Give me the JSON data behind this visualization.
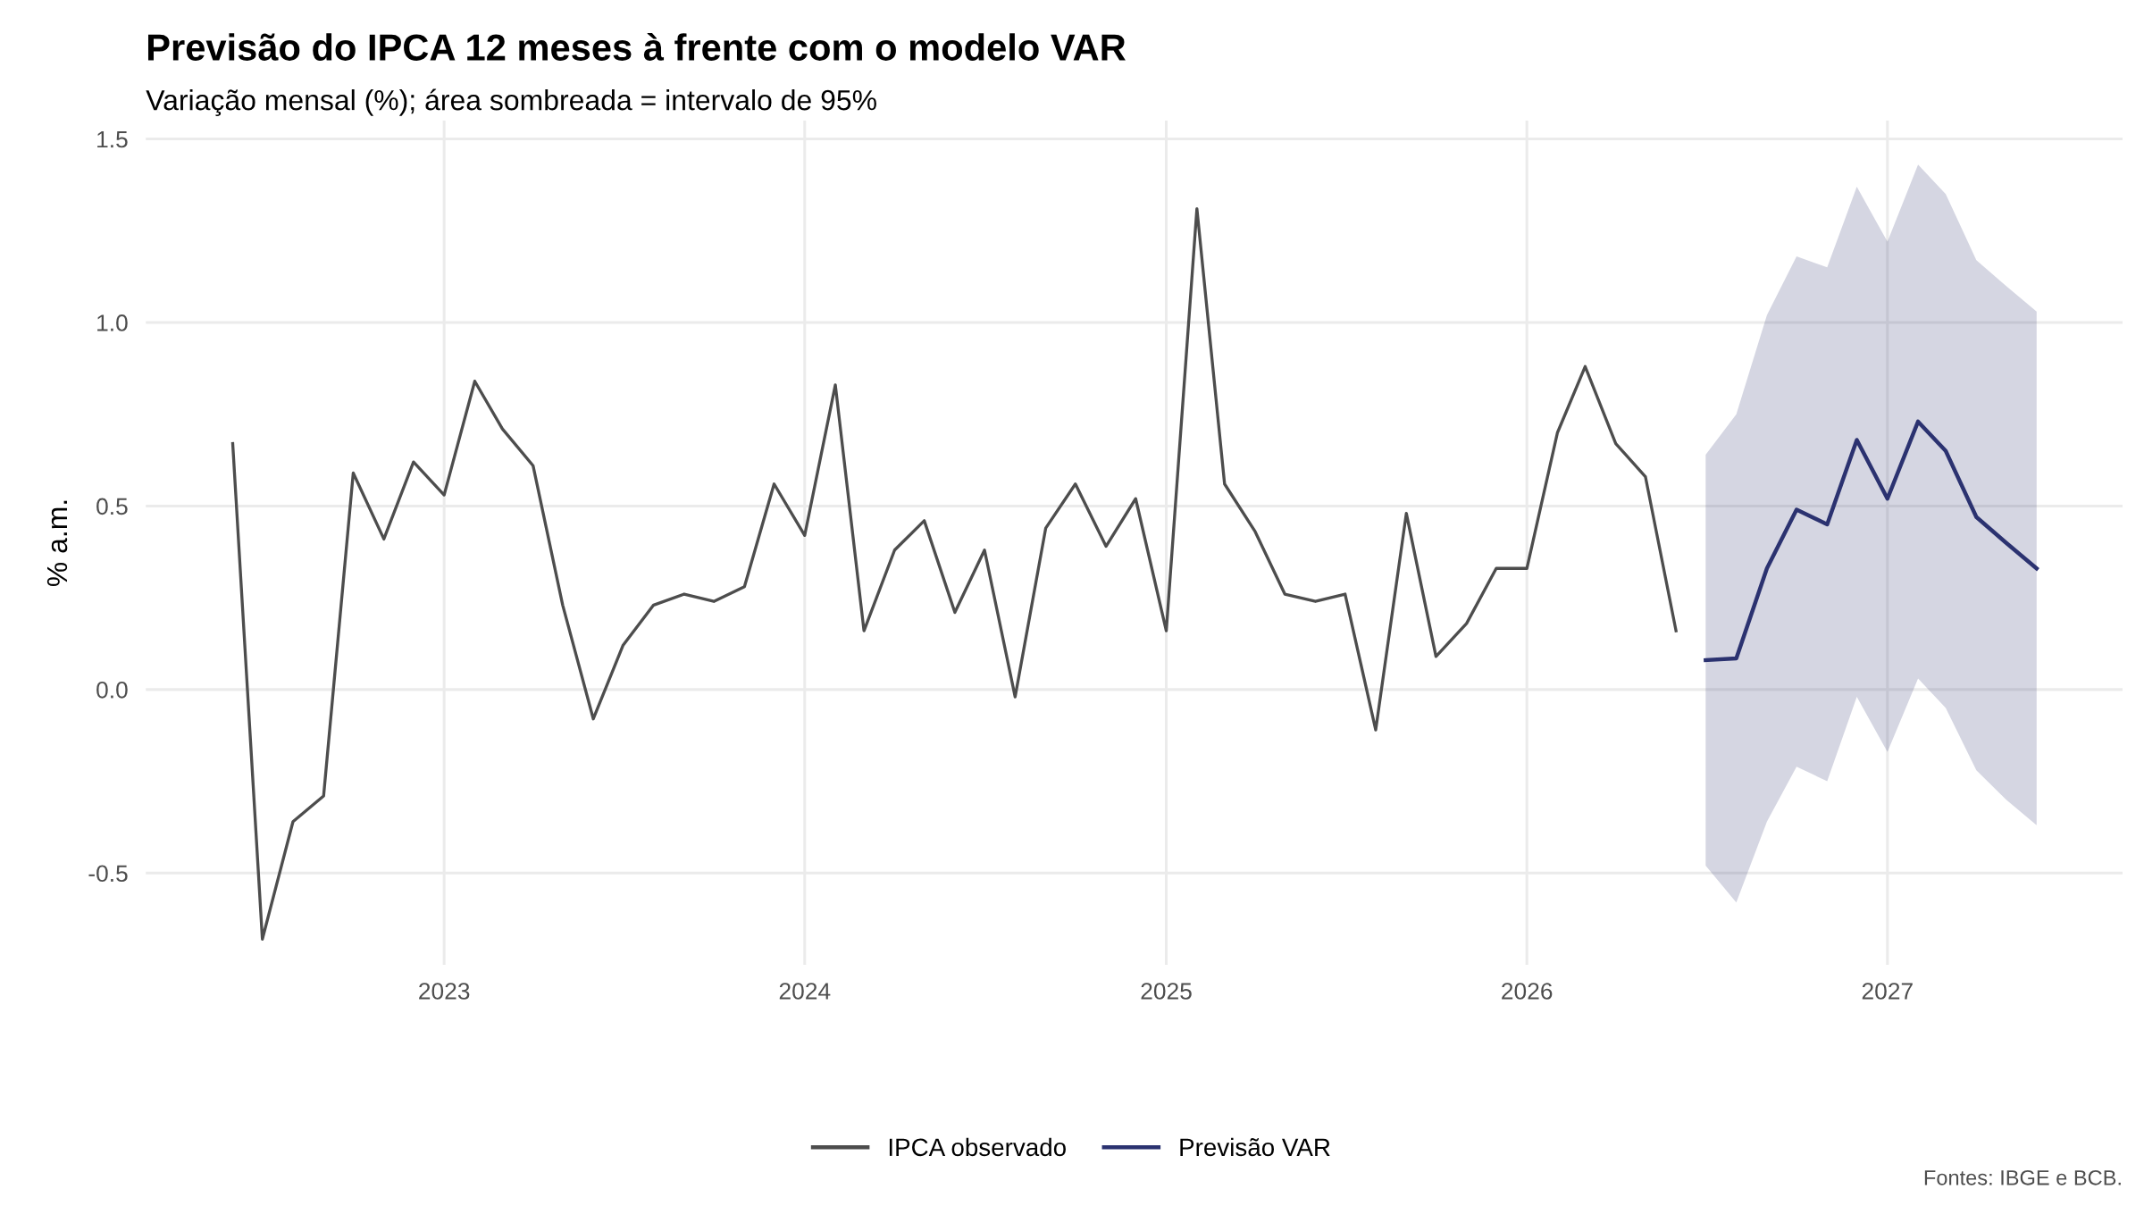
{
  "chart_data": {
    "type": "line",
    "title": "Previsão do IPCA 12 meses à frente com o modelo VAR",
    "subtitle": "Variação mensal (%); área sombreada = intervalo de 95%",
    "ylabel": "% a.m.",
    "series": [
      {
        "name": "IPCA observado",
        "color": "#4d4d4d",
        "x": [
          "2022-06",
          "2022-07",
          "2022-08",
          "2022-09",
          "2022-10",
          "2022-11",
          "2022-12",
          "2023-01",
          "2023-02",
          "2023-03",
          "2023-04",
          "2023-05",
          "2023-06",
          "2023-07",
          "2023-08",
          "2023-09",
          "2023-10",
          "2023-11",
          "2023-12",
          "2024-01",
          "2024-02",
          "2024-03",
          "2024-04",
          "2024-05",
          "2024-06",
          "2024-07",
          "2024-08",
          "2024-09",
          "2024-10",
          "2024-11",
          "2024-12",
          "2025-01",
          "2025-02",
          "2025-03",
          "2025-04",
          "2025-05",
          "2025-06",
          "2025-07",
          "2025-08",
          "2025-09",
          "2025-10",
          "2025-11",
          "2025-12",
          "2026-01",
          "2026-02",
          "2026-03",
          "2026-04",
          "2026-05",
          "2026-06"
        ],
        "values": [
          0.67,
          -0.68,
          -0.36,
          -0.29,
          0.59,
          0.41,
          0.62,
          0.53,
          0.84,
          0.71,
          0.61,
          0.23,
          -0.08,
          0.12,
          0.23,
          0.26,
          0.24,
          0.28,
          0.56,
          0.42,
          0.83,
          0.16,
          0.38,
          0.46,
          0.21,
          0.38,
          -0.02,
          0.44,
          0.56,
          0.39,
          0.52,
          0.16,
          1.31,
          0.56,
          0.43,
          0.26,
          0.24,
          0.26,
          -0.11,
          0.48,
          0.09,
          0.18,
          0.33,
          0.33,
          0.7,
          0.88,
          0.67,
          0.58,
          0.16
        ]
      },
      {
        "name": "Previsão VAR",
        "color": "#2b3270",
        "x": [
          "2026-07",
          "2026-08",
          "2026-09",
          "2026-10",
          "2026-11",
          "2026-12",
          "2027-01",
          "2027-02",
          "2027-03",
          "2027-04",
          "2027-05",
          "2027-06"
        ],
        "values": [
          0.08,
          0.085,
          0.33,
          0.49,
          0.45,
          0.68,
          0.52,
          0.73,
          0.65,
          0.47,
          0.4,
          0.33
        ],
        "lower": [
          -0.48,
          -0.58,
          -0.36,
          -0.21,
          -0.25,
          -0.02,
          -0.17,
          0.03,
          -0.05,
          -0.22,
          -0.3,
          -0.37
        ],
        "upper": [
          0.64,
          0.75,
          1.02,
          1.18,
          1.15,
          1.37,
          1.22,
          1.43,
          1.35,
          1.17,
          1.1,
          1.03
        ]
      }
    ],
    "xlim": [
      "2022-03-05",
      "2027-08-27"
    ],
    "xticks": [
      {
        "value": "2023-01-01",
        "label": "2023"
      },
      {
        "value": "2024-01-01",
        "label": "2024"
      },
      {
        "value": "2025-01-01",
        "label": "2025"
      },
      {
        "value": "2026-01-01",
        "label": "2026"
      },
      {
        "value": "2027-01-01",
        "label": "2027"
      }
    ],
    "ylim": [
      -0.75,
      1.55
    ],
    "yticks": [
      {
        "value": -0.5,
        "label": "-0.5"
      },
      {
        "value": 0,
        "label": "0.0"
      },
      {
        "value": 0.5,
        "label": "0.5"
      },
      {
        "value": 1,
        "label": "1.0"
      },
      {
        "value": 1.5,
        "label": "1.5"
      }
    ],
    "grid": true,
    "legend": "bottom",
    "annotations": [
      "Fontes: IBGE e BCB."
    ]
  }
}
